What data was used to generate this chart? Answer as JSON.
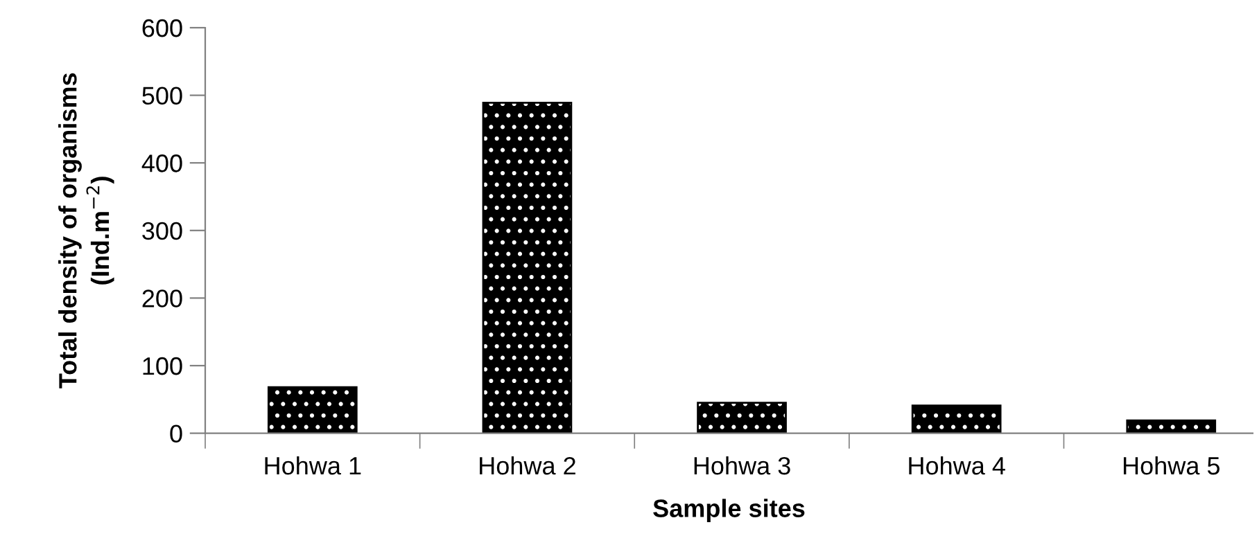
{
  "chart_data": {
    "type": "bar",
    "xlabel": "Sample sites",
    "ylabel": "Total density of organisms\n(Ind.m$^{−2}$)",
    "categories": [
      "Hohwa 1",
      "Hohwa 2",
      "Hohwa 3",
      "Hohwa 4",
      "Hohwa 5"
    ],
    "values": [
      68,
      489,
      45,
      41,
      19
    ],
    "color": "#000000",
    "ylim": [
      0,
      600
    ],
    "yticks": [
      0,
      100,
      200,
      300,
      400,
      500,
      600
    ],
    "grid": false,
    "legend": false
  }
}
